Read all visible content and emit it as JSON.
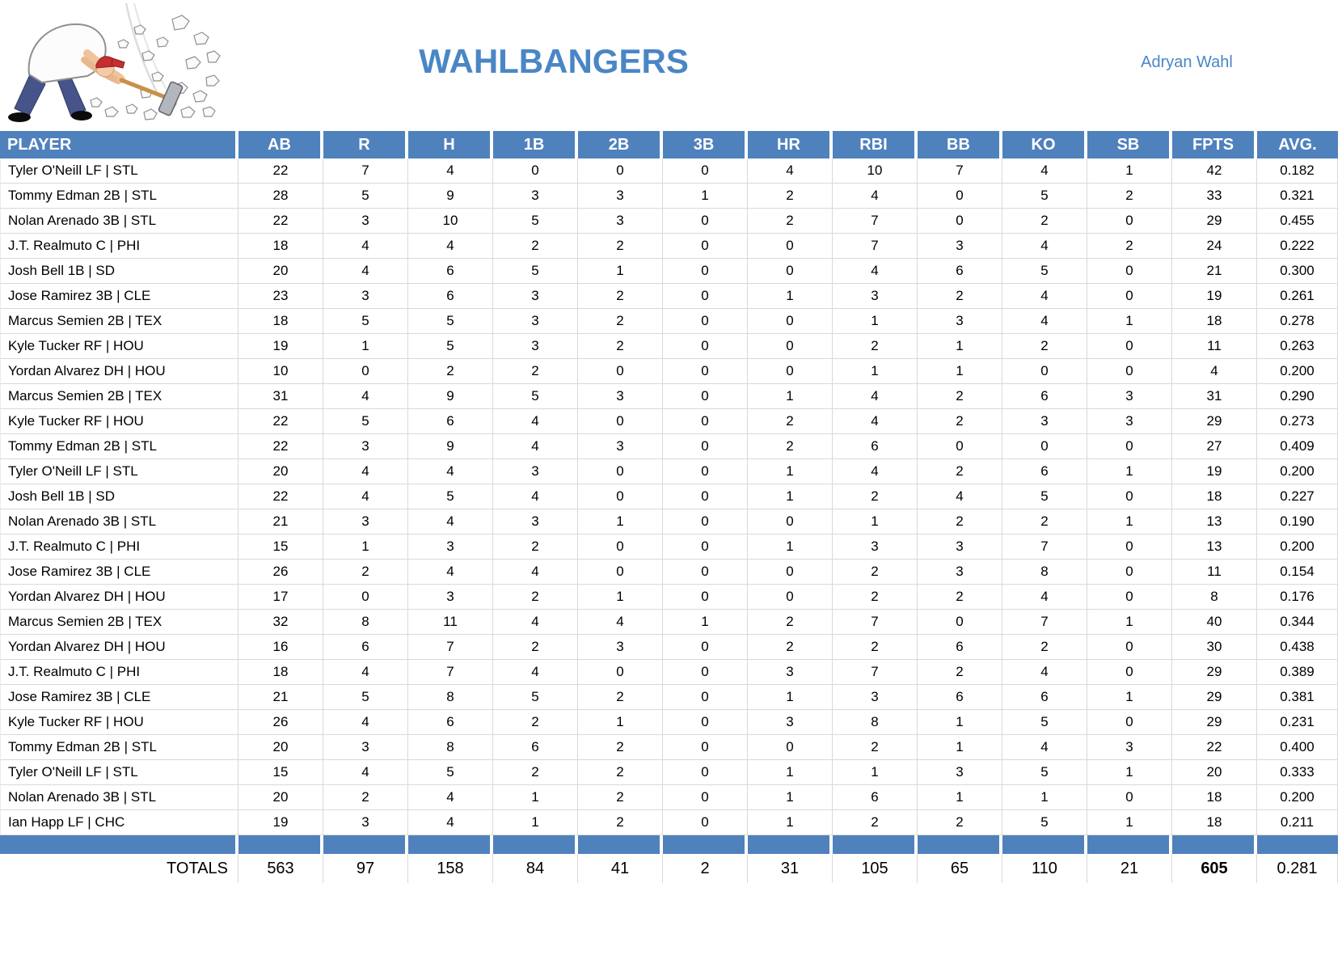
{
  "header": {
    "title": "WAHLBANGERS",
    "owner": "Adryan Wahl"
  },
  "colors": {
    "header_blue": "#4f81bd",
    "title_blue": "#4a86c6",
    "grid_gray": "#d9d9d9"
  },
  "table": {
    "columns": [
      "PLAYER",
      "AB",
      "R",
      "H",
      "1B",
      "2B",
      "3B",
      "HR",
      "RBI",
      "BB",
      "KO",
      "SB",
      "FPTS",
      "AVG."
    ],
    "rows": [
      {
        "player": "Tyler O'Neill LF | STL",
        "stats": [
          "22",
          "7",
          "4",
          "0",
          "0",
          "0",
          "4",
          "10",
          "7",
          "4",
          "1",
          "42",
          "0.182"
        ]
      },
      {
        "player": "Tommy Edman 2B | STL",
        "stats": [
          "28",
          "5",
          "9",
          "3",
          "3",
          "1",
          "2",
          "4",
          "0",
          "5",
          "2",
          "33",
          "0.321"
        ]
      },
      {
        "player": "Nolan Arenado 3B | STL",
        "stats": [
          "22",
          "3",
          "10",
          "5",
          "3",
          "0",
          "2",
          "7",
          "0",
          "2",
          "0",
          "29",
          "0.455"
        ]
      },
      {
        "player": "J.T. Realmuto C | PHI",
        "stats": [
          "18",
          "4",
          "4",
          "2",
          "2",
          "0",
          "0",
          "7",
          "3",
          "4",
          "2",
          "24",
          "0.222"
        ]
      },
      {
        "player": "Josh Bell 1B | SD",
        "stats": [
          "20",
          "4",
          "6",
          "5",
          "1",
          "0",
          "0",
          "4",
          "6",
          "5",
          "0",
          "21",
          "0.300"
        ]
      },
      {
        "player": "Jose Ramirez 3B | CLE",
        "stats": [
          "23",
          "3",
          "6",
          "3",
          "2",
          "0",
          "1",
          "3",
          "2",
          "4",
          "0",
          "19",
          "0.261"
        ]
      },
      {
        "player": "Marcus Semien 2B | TEX",
        "stats": [
          "18",
          "5",
          "5",
          "3",
          "2",
          "0",
          "0",
          "1",
          "3",
          "4",
          "1",
          "18",
          "0.278"
        ]
      },
      {
        "player": "Kyle Tucker RF | HOU",
        "stats": [
          "19",
          "1",
          "5",
          "3",
          "2",
          "0",
          "0",
          "2",
          "1",
          "2",
          "0",
          "11",
          "0.263"
        ]
      },
      {
        "player": "Yordan Alvarez DH | HOU",
        "stats": [
          "10",
          "0",
          "2",
          "2",
          "0",
          "0",
          "0",
          "1",
          "1",
          "0",
          "0",
          "4",
          "0.200"
        ]
      },
      {
        "player": "Marcus Semien 2B | TEX",
        "stats": [
          "31",
          "4",
          "9",
          "5",
          "3",
          "0",
          "1",
          "4",
          "2",
          "6",
          "3",
          "31",
          "0.290"
        ]
      },
      {
        "player": "Kyle Tucker RF | HOU",
        "stats": [
          "22",
          "5",
          "6",
          "4",
          "0",
          "0",
          "2",
          "4",
          "2",
          "3",
          "3",
          "29",
          "0.273"
        ]
      },
      {
        "player": "Tommy Edman 2B | STL",
        "stats": [
          "22",
          "3",
          "9",
          "4",
          "3",
          "0",
          "2",
          "6",
          "0",
          "0",
          "0",
          "27",
          "0.409"
        ]
      },
      {
        "player": "Tyler O'Neill LF | STL",
        "stats": [
          "20",
          "4",
          "4",
          "3",
          "0",
          "0",
          "1",
          "4",
          "2",
          "6",
          "1",
          "19",
          "0.200"
        ]
      },
      {
        "player": "Josh Bell 1B | SD",
        "stats": [
          "22",
          "4",
          "5",
          "4",
          "0",
          "0",
          "1",
          "2",
          "4",
          "5",
          "0",
          "18",
          "0.227"
        ]
      },
      {
        "player": "Nolan Arenado 3B | STL",
        "stats": [
          "21",
          "3",
          "4",
          "3",
          "1",
          "0",
          "0",
          "1",
          "2",
          "2",
          "1",
          "13",
          "0.190"
        ]
      },
      {
        "player": "J.T. Realmuto C | PHI",
        "stats": [
          "15",
          "1",
          "3",
          "2",
          "0",
          "0",
          "1",
          "3",
          "3",
          "7",
          "0",
          "13",
          "0.200"
        ]
      },
      {
        "player": "Jose Ramirez 3B | CLE",
        "stats": [
          "26",
          "2",
          "4",
          "4",
          "0",
          "0",
          "0",
          "2",
          "3",
          "8",
          "0",
          "11",
          "0.154"
        ]
      },
      {
        "player": "Yordan Alvarez DH | HOU",
        "stats": [
          "17",
          "0",
          "3",
          "2",
          "1",
          "0",
          "0",
          "2",
          "2",
          "4",
          "0",
          "8",
          "0.176"
        ]
      },
      {
        "player": "Marcus Semien 2B | TEX",
        "stats": [
          "32",
          "8",
          "11",
          "4",
          "4",
          "1",
          "2",
          "7",
          "0",
          "7",
          "1",
          "40",
          "0.344"
        ]
      },
      {
        "player": "Yordan Alvarez DH | HOU",
        "stats": [
          "16",
          "6",
          "7",
          "2",
          "3",
          "0",
          "2",
          "2",
          "6",
          "2",
          "0",
          "30",
          "0.438"
        ]
      },
      {
        "player": "J.T. Realmuto C | PHI",
        "stats": [
          "18",
          "4",
          "7",
          "4",
          "0",
          "0",
          "3",
          "7",
          "2",
          "4",
          "0",
          "29",
          "0.389"
        ]
      },
      {
        "player": "Jose Ramirez 3B | CLE",
        "stats": [
          "21",
          "5",
          "8",
          "5",
          "2",
          "0",
          "1",
          "3",
          "6",
          "6",
          "1",
          "29",
          "0.381"
        ]
      },
      {
        "player": "Kyle Tucker RF | HOU",
        "stats": [
          "26",
          "4",
          "6",
          "2",
          "1",
          "0",
          "3",
          "8",
          "1",
          "5",
          "0",
          "29",
          "0.231"
        ]
      },
      {
        "player": "Tommy Edman 2B | STL",
        "stats": [
          "20",
          "3",
          "8",
          "6",
          "2",
          "0",
          "0",
          "2",
          "1",
          "4",
          "3",
          "22",
          "0.400"
        ]
      },
      {
        "player": "Tyler O'Neill LF | STL",
        "stats": [
          "15",
          "4",
          "5",
          "2",
          "2",
          "0",
          "1",
          "1",
          "3",
          "5",
          "1",
          "20",
          "0.333"
        ]
      },
      {
        "player": "Nolan Arenado 3B | STL",
        "stats": [
          "20",
          "2",
          "4",
          "1",
          "2",
          "0",
          "1",
          "6",
          "1",
          "1",
          "0",
          "18",
          "0.200"
        ]
      },
      {
        "player": "Ian Happ LF | CHC",
        "stats": [
          "19",
          "3",
          "4",
          "1",
          "2",
          "0",
          "1",
          "2",
          "2",
          "5",
          "1",
          "18",
          "0.211"
        ]
      }
    ],
    "totals": {
      "label": "TOTALS",
      "values": [
        "563",
        "97",
        "158",
        "84",
        "41",
        "2",
        "31",
        "105",
        "65",
        "110",
        "21",
        "605",
        "0.281"
      ],
      "bold_index": 11
    }
  }
}
